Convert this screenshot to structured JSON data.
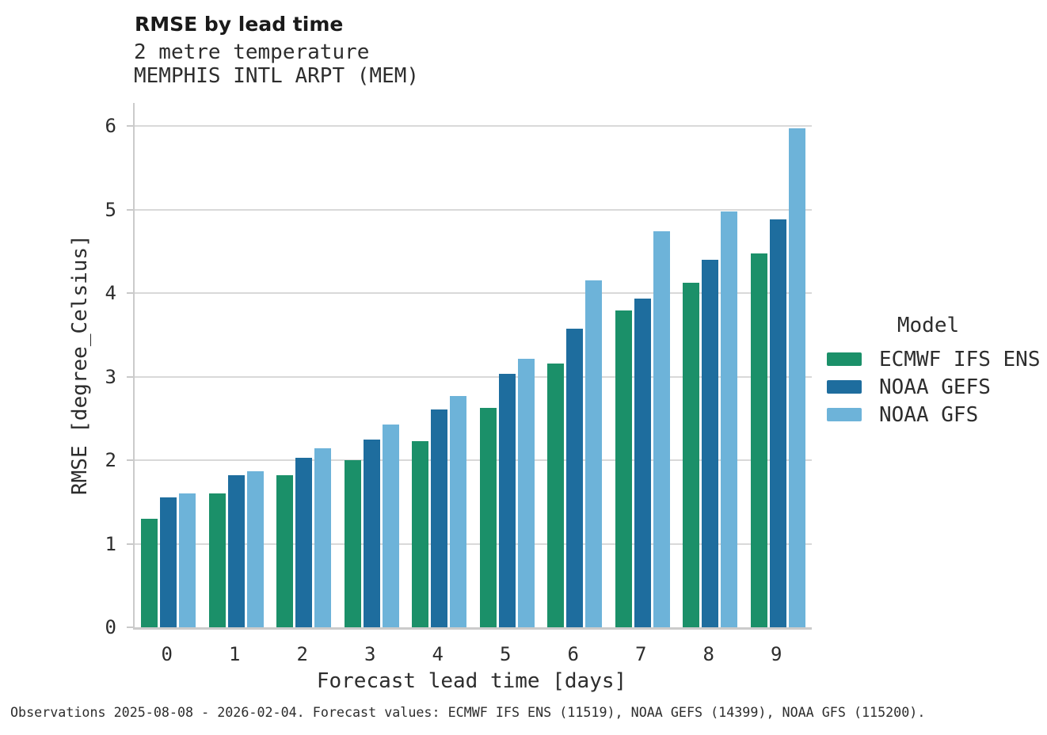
{
  "chart_data": {
    "type": "bar",
    "title": "RMSE by lead time",
    "subtitle": [
      "2 metre temperature",
      "MEMPHIS INTL ARPT (MEM)"
    ],
    "xlabel": "Forecast lead time [days]",
    "ylabel": "RMSE [degree_Celsius]",
    "categories": [
      "0",
      "1",
      "2",
      "3",
      "4",
      "5",
      "6",
      "7",
      "8",
      "9"
    ],
    "y_ticks": [
      0,
      1,
      2,
      3,
      4,
      5,
      6
    ],
    "ylim": [
      0,
      6
    ],
    "grid": "horizontal gridlines at integer values, left and bottom spines only",
    "legend": {
      "title": "Model",
      "position": "right-center"
    },
    "series": [
      {
        "name": "ECMWF IFS ENS",
        "color": "#1b9069",
        "values": [
          1.3,
          1.6,
          1.82,
          2.0,
          2.23,
          2.63,
          3.16,
          3.79,
          4.12,
          4.47
        ]
      },
      {
        "name": "NOAA GEFS",
        "color": "#1e6d9e",
        "values": [
          1.55,
          1.82,
          2.03,
          2.25,
          2.61,
          3.03,
          3.57,
          3.93,
          4.4,
          4.88
        ]
      },
      {
        "name": "NOAA GFS",
        "color": "#6db3d9",
        "values": [
          1.6,
          1.87,
          2.14,
          2.43,
          2.77,
          3.21,
          4.15,
          4.74,
          4.98,
          5.97
        ]
      }
    ]
  },
  "caption": "Observations 2025-08-08 - 2026-02-04. Forecast values: ECMWF IFS ENS (11519), NOAA GEFS (14399), NOAA GFS (115200)."
}
